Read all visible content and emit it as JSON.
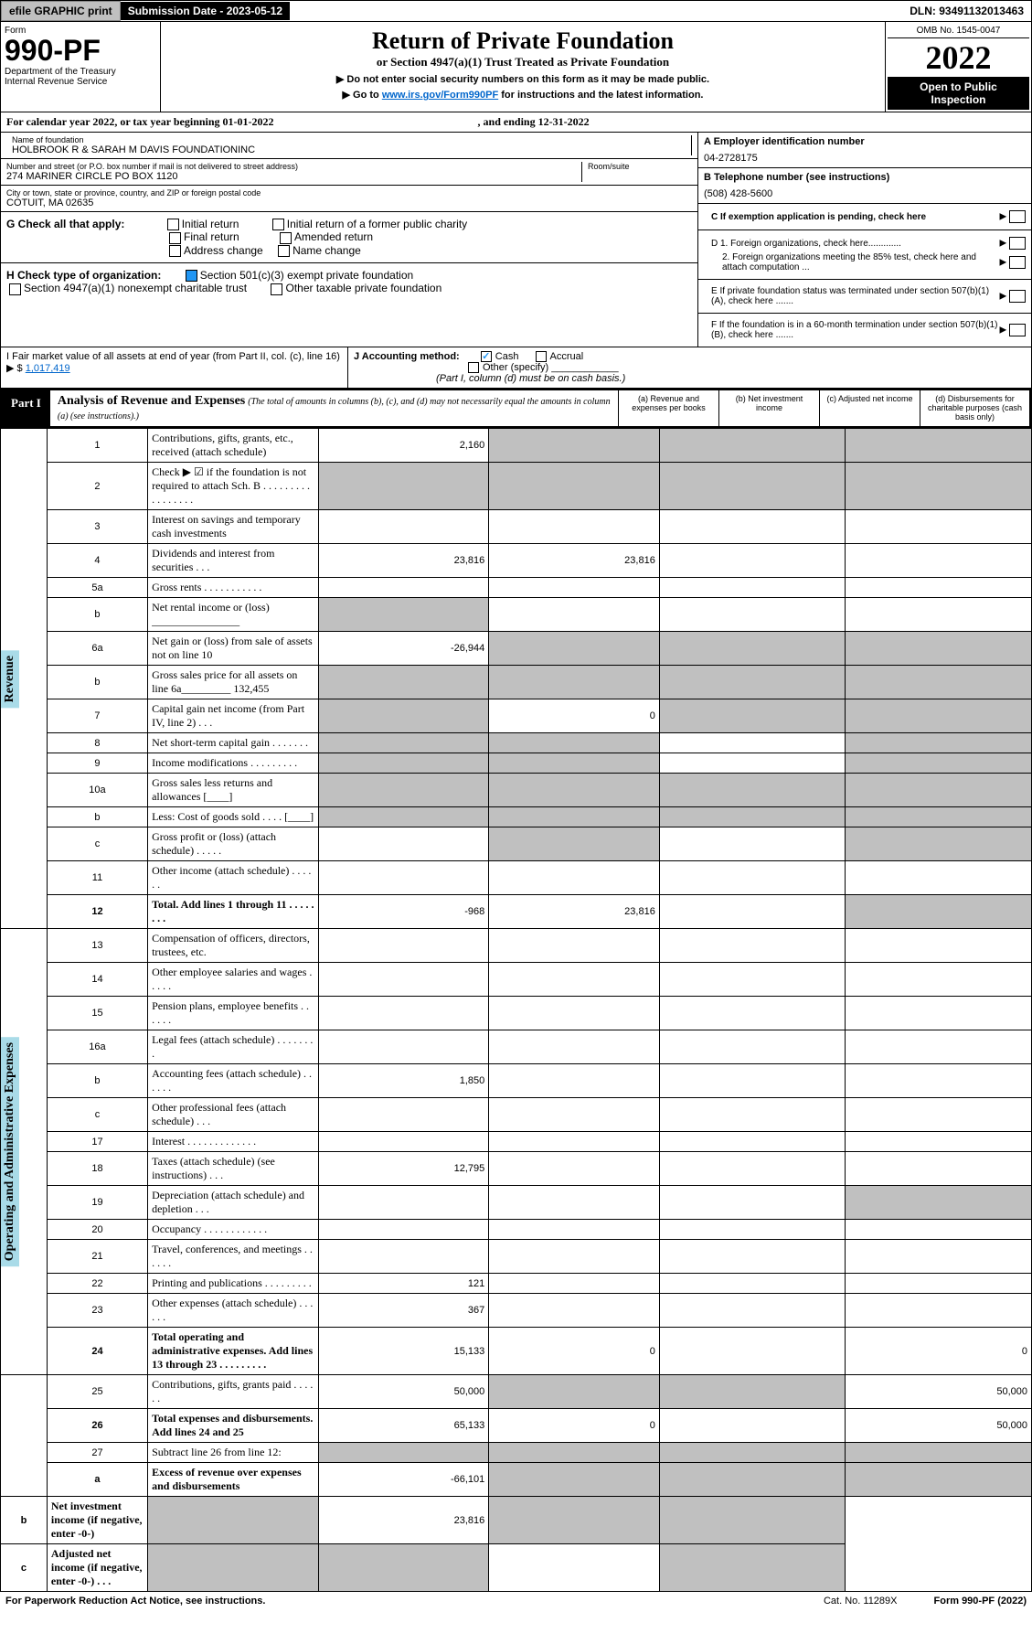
{
  "topbar": {
    "efile": "efile GRAPHIC print",
    "submission": "Submission Date - 2023-05-12",
    "dln": "DLN: 93491132013463"
  },
  "header": {
    "form": "Form",
    "number": "990-PF",
    "dept": "Department of the Treasury\nInternal Revenue Service",
    "title": "Return of Private Foundation",
    "subtitle": "or Section 4947(a)(1) Trust Treated as Private Foundation",
    "note1": "▶ Do not enter social security numbers on this form as it may be made public.",
    "note2_pre": "▶ Go to ",
    "note2_link": "www.irs.gov/Form990PF",
    "note2_post": " for instructions and the latest information.",
    "omb": "OMB No. 1545-0047",
    "year": "2022",
    "open": "Open to Public Inspection"
  },
  "calyear": "For calendar year 2022, or tax year beginning 01-01-2022",
  "ending": ", and ending 12-31-2022",
  "info": {
    "name_lbl": "Name of foundation",
    "name": "HOLBROOK R & SARAH M DAVIS FOUNDATIONINC",
    "addr_lbl": "Number and street (or P.O. box number if mail is not delivered to street address)",
    "addr": "274 MARINER CIRCLE PO BOX 1120",
    "room_lbl": "Room/suite",
    "city_lbl": "City or town, state or province, country, and ZIP or foreign postal code",
    "city": "COTUIT, MA  02635",
    "a_lbl": "A Employer identification number",
    "a_val": "04-2728175",
    "b_lbl": "B Telephone number (see instructions)",
    "b_val": "(508) 428-5600",
    "c_lbl": "C If exemption application is pending, check here"
  },
  "g": {
    "label": "G Check all that apply:",
    "opts": [
      "Initial return",
      "Final return",
      "Address change",
      "Initial return of a former public charity",
      "Amended return",
      "Name change"
    ]
  },
  "h": {
    "label": "H Check type of organization:",
    "opt1": "Section 501(c)(3) exempt private foundation",
    "opt2": "Section 4947(a)(1) nonexempt charitable trust",
    "opt3": "Other taxable private foundation"
  },
  "i": {
    "label": "I Fair market value of all assets at end of year (from Part II, col. (c), line 16) ▶ $",
    "val": "1,017,419"
  },
  "j": {
    "label": "J Accounting method:",
    "cash": "Cash",
    "accrual": "Accrual",
    "other": "Other (specify)",
    "note": "(Part I, column (d) must be on cash basis.)"
  },
  "d": {
    "d1": "D 1. Foreign organizations, check here.............",
    "d2": "2. Foreign organizations meeting the 85% test, check here and attach computation ...",
    "e": "E  If private foundation status was terminated under section 507(b)(1)(A), check here .......",
    "f": "F  If the foundation is in a 60-month termination under section 507(b)(1)(B), check here ......."
  },
  "part1": {
    "tag": "Part I",
    "title": "Analysis of Revenue and Expenses",
    "note": "(The total of amounts in columns (b), (c), and (d) may not necessarily equal the amounts in column (a) (see instructions).)",
    "cols": {
      "a": "(a)   Revenue and expenses per books",
      "b": "(b)   Net investment income",
      "c": "(c)   Adjusted net income",
      "d": "(d)   Disbursements for charitable purposes (cash basis only)"
    }
  },
  "sidelabels": {
    "rev": "Revenue",
    "exp": "Operating and Administrative Expenses"
  },
  "rows": [
    {
      "n": "1",
      "d": "Contributions, gifts, grants, etc., received (attach schedule)",
      "a": "2,160",
      "greyBCD": true
    },
    {
      "n": "2",
      "d": "Check ▶ ☑ if the foundation is not required to attach Sch. B  .  .  .  .  .  .  .  .  .  .  .  .  .  .  .  .  .",
      "noVal": true,
      "greyAll": true
    },
    {
      "n": "3",
      "d": "Interest on savings and temporary cash investments"
    },
    {
      "n": "4",
      "d": "Dividends and interest from securities   .   .   .",
      "a": "23,816",
      "b": "23,816"
    },
    {
      "n": "5a",
      "d": "Gross rents   .   .   .   .   .   .   .   .   .   .   ."
    },
    {
      "n": "b",
      "d": "Net rental income or (loss) ________________",
      "greyA": true
    },
    {
      "n": "6a",
      "d": "Net gain or (loss) from sale of assets not on line 10",
      "a": "-26,944",
      "greyBCD": true
    },
    {
      "n": "b",
      "d": "Gross sales price for all assets on line 6a_________  132,455",
      "greyAll": true
    },
    {
      "n": "7",
      "d": "Capital gain net income (from Part IV, line 2)   .   .   .",
      "greyA": true,
      "b": "0",
      "greyCD": true
    },
    {
      "n": "8",
      "d": "Net short-term capital gain  .   .   .   .   .   .   .",
      "greyAB": true,
      "greyD": true
    },
    {
      "n": "9",
      "d": "Income modifications  .   .   .   .   .   .   .   .   .",
      "greyAB": true,
      "greyD": true
    },
    {
      "n": "10a",
      "d": "Gross sales less returns and allowances   [____]",
      "greyAll": true
    },
    {
      "n": "b",
      "d": "Less: Cost of goods sold   .   .   .   .   [____]",
      "greyAll": true
    },
    {
      "n": "c",
      "d": "Gross profit or (loss) (attach schedule)   .   .   .   .   .",
      "greyB": true,
      "greyD": true
    },
    {
      "n": "11",
      "d": "Other income (attach schedule)   .   .   .   .   .   ."
    },
    {
      "n": "12",
      "d": "Total. Add lines 1 through 11   .   .   .   .   .   .   .   .",
      "bold": true,
      "a": "-968",
      "b": "23,816",
      "greyD": true
    },
    {
      "n": "13",
      "d": "Compensation of officers, directors, trustees, etc."
    },
    {
      "n": "14",
      "d": "Other employee salaries and wages   .   .   .   .   ."
    },
    {
      "n": "15",
      "d": "Pension plans, employee benefits  .   .   .   .   .   ."
    },
    {
      "n": "16a",
      "d": "Legal fees (attach schedule)  .   .   .   .   .   .   .   ."
    },
    {
      "n": "b",
      "d": "Accounting fees (attach schedule)  .   .   .   .   .   .",
      "a": "1,850"
    },
    {
      "n": "c",
      "d": "Other professional fees (attach schedule)   .   .   ."
    },
    {
      "n": "17",
      "d": "Interest  .   .   .   .   .   .   .   .   .   .   .   .   ."
    },
    {
      "n": "18",
      "d": "Taxes (attach schedule) (see instructions)   .   .   .",
      "a": "12,795"
    },
    {
      "n": "19",
      "d": "Depreciation (attach schedule) and depletion   .   .   .",
      "greyD": true
    },
    {
      "n": "20",
      "d": "Occupancy  .   .   .   .   .   .   .   .   .   .   .   ."
    },
    {
      "n": "21",
      "d": "Travel, conferences, and meetings  .   .   .   .   .   ."
    },
    {
      "n": "22",
      "d": "Printing and publications  .   .   .   .   .   .   .   .   .",
      "a": "121"
    },
    {
      "n": "23",
      "d": "Other expenses (attach schedule)  .   .   .   .   .   .",
      "a": "367"
    },
    {
      "n": "24",
      "d": "Total operating and administrative expenses. Add lines 13 through 23   .   .   .   .   .   .   .   .   .",
      "bold": true,
      "a": "15,133",
      "b": "0",
      "d_": "0"
    },
    {
      "n": "25",
      "d": "Contributions, gifts, grants paid   .   .   .   .   .   .",
      "a": "50,000",
      "greyBC": true,
      "d_": "50,000"
    },
    {
      "n": "26",
      "d": "Total expenses and disbursements. Add lines 24 and 25",
      "bold": true,
      "a": "65,133",
      "b": "0",
      "d_": "50,000"
    },
    {
      "n": "27",
      "d": "Subtract line 26 from line 12:",
      "greyAll": true
    },
    {
      "n": "a",
      "d": "Excess of revenue over expenses and disbursements",
      "bold": true,
      "a": "-66,101",
      "greyBCD": true
    },
    {
      "n": "b",
      "d": "Net investment income (if negative, enter -0-)",
      "bold": true,
      "greyA": true,
      "b": "23,816",
      "greyCD": true
    },
    {
      "n": "c",
      "d": "Adjusted net income (if negative, enter -0-)   .   .   .",
      "bold": true,
      "greyAB": true,
      "greyD": true
    }
  ],
  "footer": {
    "left": "For Paperwork Reduction Act Notice, see instructions.",
    "mid": "Cat. No. 11289X",
    "right": "Form 990-PF (2022)"
  }
}
